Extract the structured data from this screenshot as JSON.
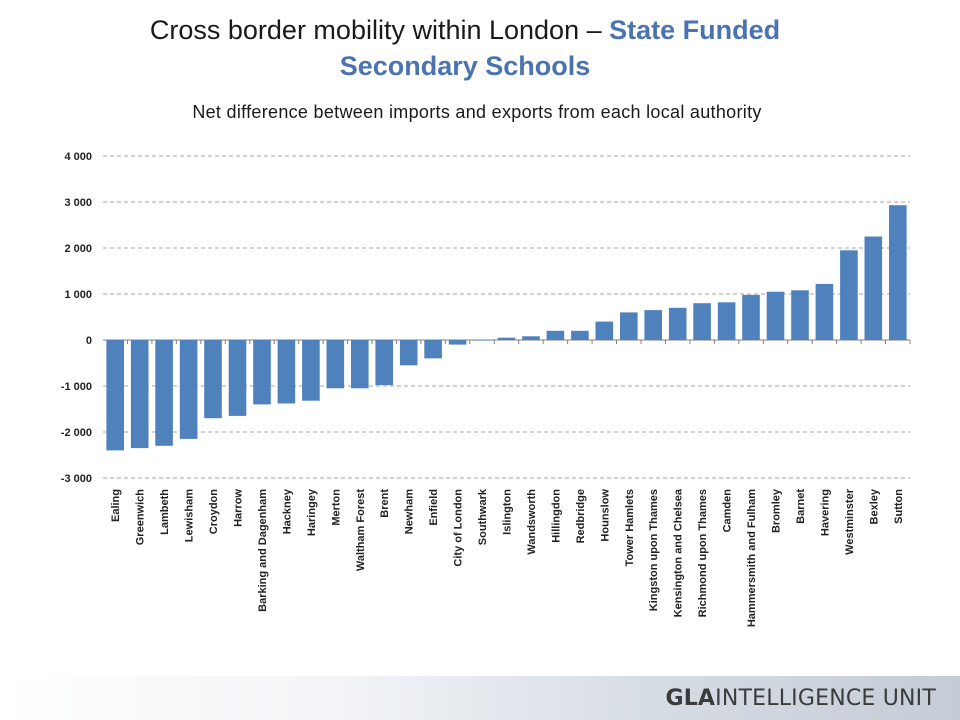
{
  "title": {
    "part1": "Cross border mobility within London – ",
    "part2": "State Funded",
    "part3": "Secondary Schools"
  },
  "subtitle": "Net difference between imports and exports from each local authority",
  "brand": {
    "bold": "GLA",
    "rest": "INTELLIGENCE UNIT"
  },
  "colors": {
    "bar": "#4f81bd",
    "grid": "#a6a6a6",
    "accent": "#4a73b0"
  },
  "chart_data": {
    "type": "bar",
    "categories": [
      "Ealing",
      "Greenwich",
      "Lambeth",
      "Lewisham",
      "Croydon",
      "Harrow",
      "Barking and Dagenham",
      "Hackney",
      "Haringey",
      "Merton",
      "Waltham Forest",
      "Brent",
      "Newham",
      "Enfield",
      "City of London",
      "Southwark",
      "Islington",
      "Wandsworth",
      "Hillingdon",
      "Redbridge",
      "Hounslow",
      "Tower Hamlets",
      "Kingston upon Thames",
      "Kensington and Chelsea",
      "Richmond upon Thames",
      "Camden",
      "Hammersmith and Fulham",
      "Bromley",
      "Barnet",
      "Havering",
      "Westminster",
      "Bexley",
      "Sutton"
    ],
    "values": [
      -2400,
      -2350,
      -2300,
      -2150,
      -1700,
      -1650,
      -1400,
      -1380,
      -1320,
      -1050,
      -1050,
      -980,
      -550,
      -400,
      -100,
      -10,
      50,
      80,
      200,
      200,
      400,
      600,
      650,
      700,
      800,
      820,
      980,
      1050,
      1080,
      1220,
      1950,
      2250,
      2930
    ],
    "ylim": [
      -3000,
      4000
    ],
    "yticks": [
      4000,
      3000,
      2000,
      1000,
      0,
      -1000,
      -2000,
      -3000
    ],
    "ytick_labels": [
      "4 000",
      "3 000",
      "2 000",
      "1 000",
      "0",
      "-1 000",
      "-2 000",
      "-3 000"
    ],
    "grid": true,
    "legend": false
  }
}
